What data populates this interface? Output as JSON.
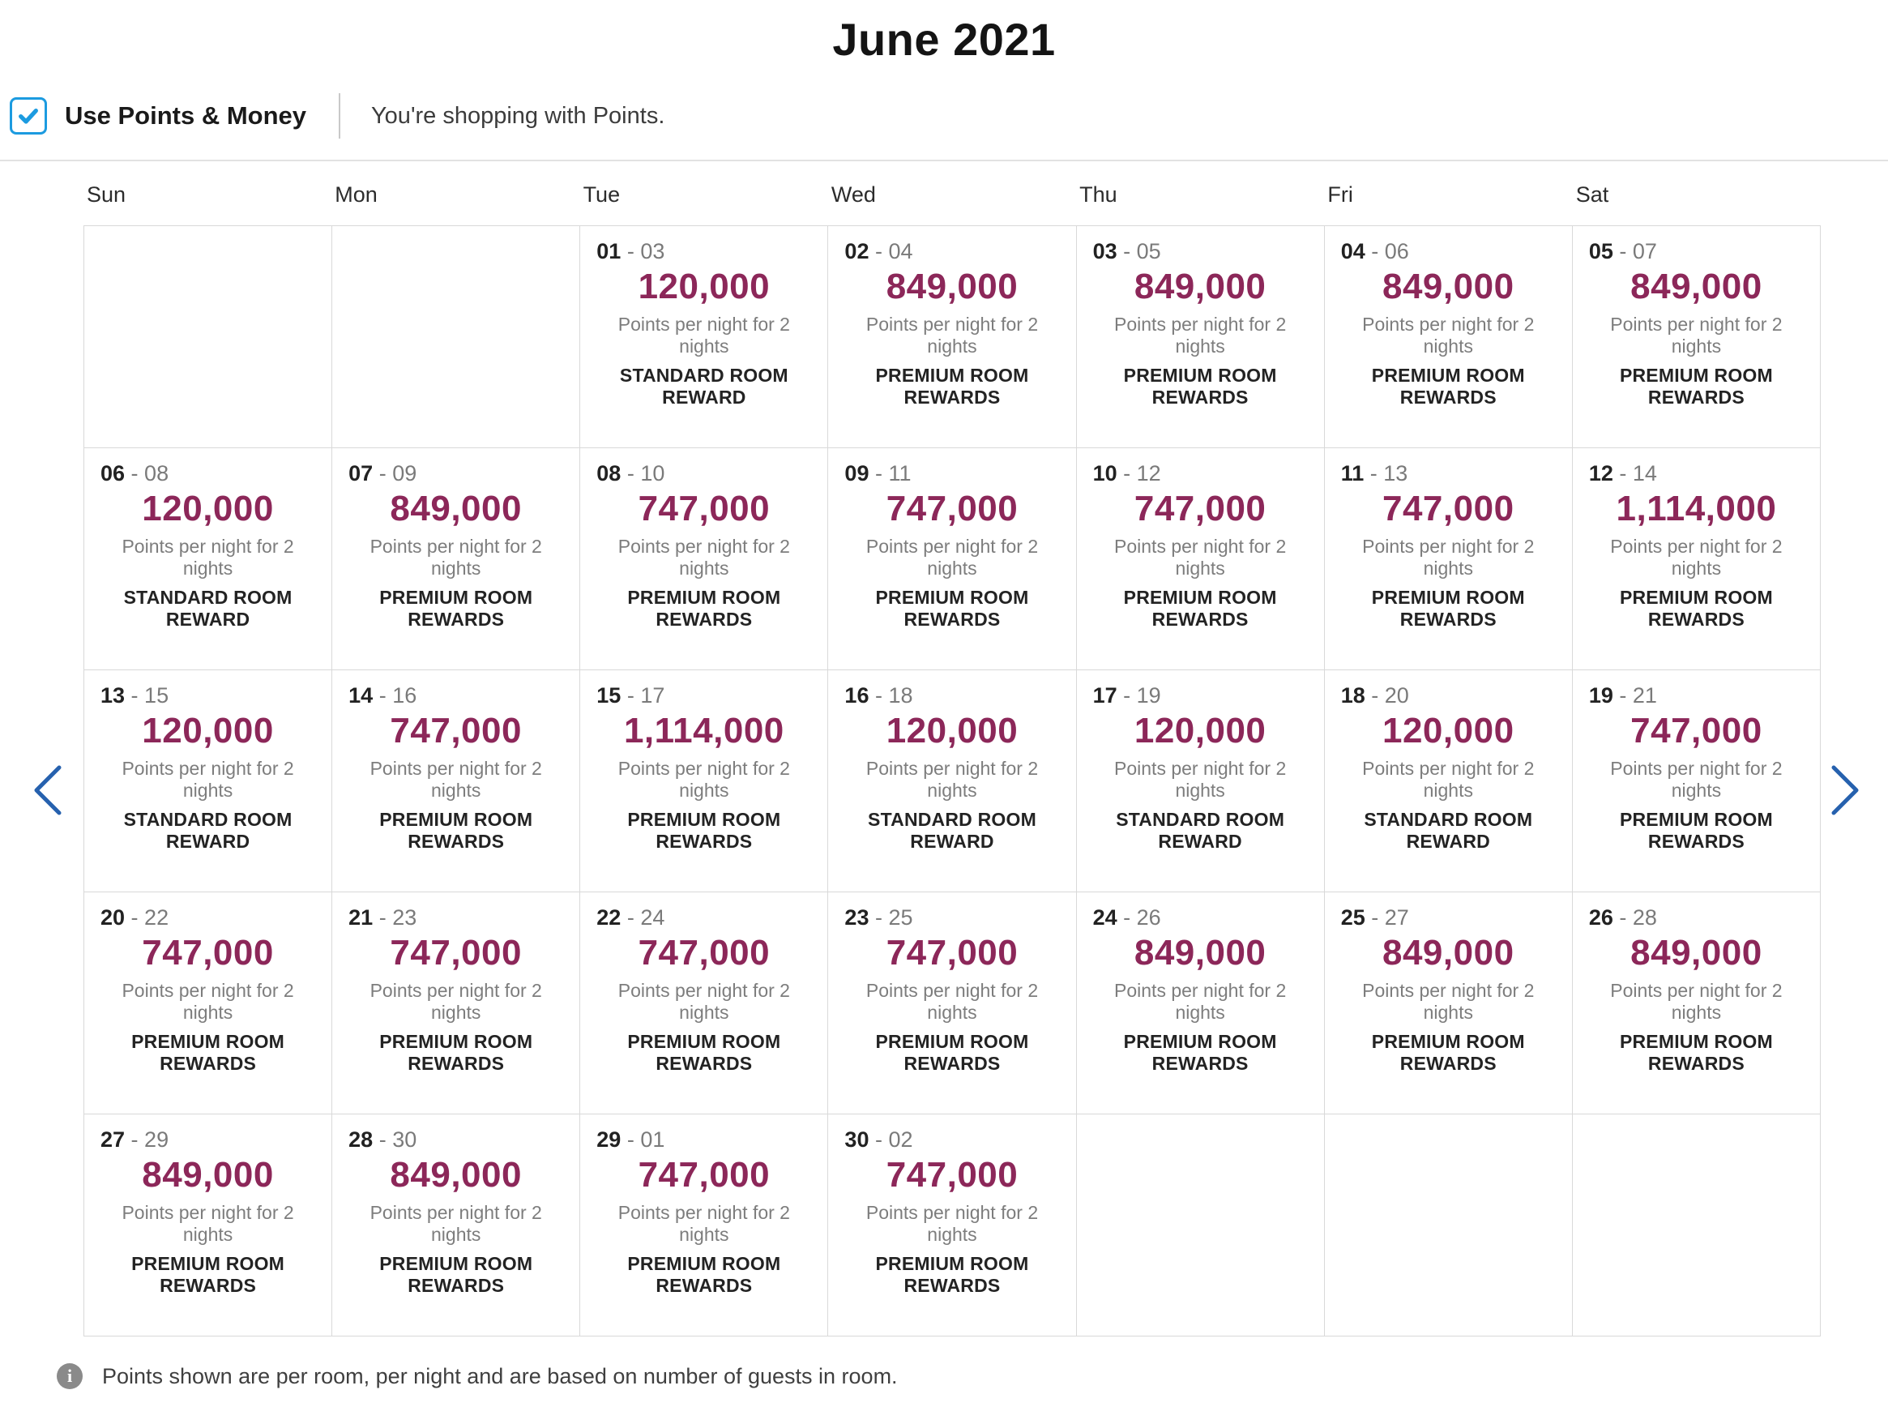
{
  "page": {
    "title": "June 2021"
  },
  "controls": {
    "checkbox_label": "Use Points & Money",
    "checkbox_checked": true,
    "status_text": "You're shopping with Points."
  },
  "icons": {
    "checkbox": "checkmark-icon",
    "prev": "chevron-left-icon",
    "next": "chevron-right-icon",
    "info": "info-circle-icon",
    "info_glyph": "i"
  },
  "colors": {
    "points_accent": "#8c2759",
    "nav_chevron": "#2661ae",
    "checkbox_blue": "#1c9be0",
    "grid_border": "#d9d9d9"
  },
  "calendar": {
    "day_headers": [
      "Sun",
      "Mon",
      "Tue",
      "Wed",
      "Thu",
      "Fri",
      "Sat"
    ],
    "unit_label": "Points per night for 2 nights",
    "weeks": [
      {
        "cells": [
          null,
          null,
          {
            "start": "01",
            "end": "03",
            "points": "120,000",
            "room": "STANDARD ROOM REWARD"
          },
          {
            "start": "02",
            "end": "04",
            "points": "849,000",
            "room": "PREMIUM ROOM REWARDS"
          },
          {
            "start": "03",
            "end": "05",
            "points": "849,000",
            "room": "PREMIUM ROOM REWARDS"
          },
          {
            "start": "04",
            "end": "06",
            "points": "849,000",
            "room": "PREMIUM ROOM REWARDS"
          },
          {
            "start": "05",
            "end": "07",
            "points": "849,000",
            "room": "PREMIUM ROOM REWARDS"
          }
        ]
      },
      {
        "cells": [
          {
            "start": "06",
            "end": "08",
            "points": "120,000",
            "room": "STANDARD ROOM REWARD"
          },
          {
            "start": "07",
            "end": "09",
            "points": "849,000",
            "room": "PREMIUM ROOM REWARDS"
          },
          {
            "start": "08",
            "end": "10",
            "points": "747,000",
            "room": "PREMIUM ROOM REWARDS"
          },
          {
            "start": "09",
            "end": "11",
            "points": "747,000",
            "room": "PREMIUM ROOM REWARDS"
          },
          {
            "start": "10",
            "end": "12",
            "points": "747,000",
            "room": "PREMIUM ROOM REWARDS"
          },
          {
            "start": "11",
            "end": "13",
            "points": "747,000",
            "room": "PREMIUM ROOM REWARDS"
          },
          {
            "start": "12",
            "end": "14",
            "points": "1,114,000",
            "room": "PREMIUM ROOM REWARDS"
          }
        ]
      },
      {
        "cells": [
          {
            "start": "13",
            "end": "15",
            "points": "120,000",
            "room": "STANDARD ROOM REWARD"
          },
          {
            "start": "14",
            "end": "16",
            "points": "747,000",
            "room": "PREMIUM ROOM REWARDS"
          },
          {
            "start": "15",
            "end": "17",
            "points": "1,114,000",
            "room": "PREMIUM ROOM REWARDS"
          },
          {
            "start": "16",
            "end": "18",
            "points": "120,000",
            "room": "STANDARD ROOM REWARD"
          },
          {
            "start": "17",
            "end": "19",
            "points": "120,000",
            "room": "STANDARD ROOM REWARD"
          },
          {
            "start": "18",
            "end": "20",
            "points": "120,000",
            "room": "STANDARD ROOM REWARD"
          },
          {
            "start": "19",
            "end": "21",
            "points": "747,000",
            "room": "PREMIUM ROOM REWARDS"
          }
        ]
      },
      {
        "cells": [
          {
            "start": "20",
            "end": "22",
            "points": "747,000",
            "room": "PREMIUM ROOM REWARDS"
          },
          {
            "start": "21",
            "end": "23",
            "points": "747,000",
            "room": "PREMIUM ROOM REWARDS"
          },
          {
            "start": "22",
            "end": "24",
            "points": "747,000",
            "room": "PREMIUM ROOM REWARDS"
          },
          {
            "start": "23",
            "end": "25",
            "points": "747,000",
            "room": "PREMIUM ROOM REWARDS"
          },
          {
            "start": "24",
            "end": "26",
            "points": "849,000",
            "room": "PREMIUM ROOM REWARDS"
          },
          {
            "start": "25",
            "end": "27",
            "points": "849,000",
            "room": "PREMIUM ROOM REWARDS"
          },
          {
            "start": "26",
            "end": "28",
            "points": "849,000",
            "room": "PREMIUM ROOM REWARDS"
          }
        ]
      },
      {
        "cells": [
          {
            "start": "27",
            "end": "29",
            "points": "849,000",
            "room": "PREMIUM ROOM REWARDS"
          },
          {
            "start": "28",
            "end": "30",
            "points": "849,000",
            "room": "PREMIUM ROOM REWARDS"
          },
          {
            "start": "29",
            "end": "01",
            "points": "747,000",
            "room": "PREMIUM ROOM REWARDS"
          },
          {
            "start": "30",
            "end": "02",
            "points": "747,000",
            "room": "PREMIUM ROOM REWARDS"
          },
          null,
          null,
          null
        ]
      }
    ]
  },
  "footer": {
    "note": "Points shown are per room, per night and are based on number of guests in room."
  }
}
